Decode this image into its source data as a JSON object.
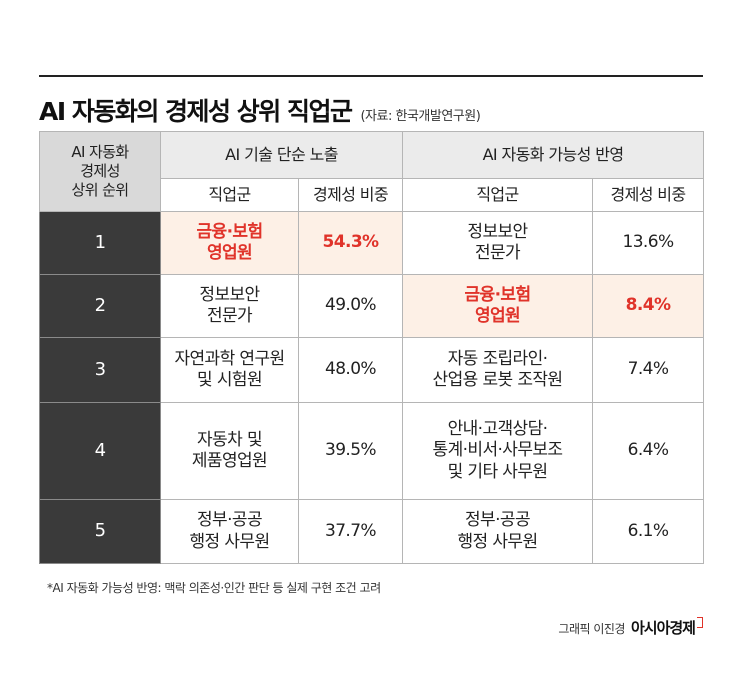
{
  "title": "AI 자동화의 경제성 상위 직업군",
  "source": "(자료: 한국개발연구원)",
  "table": {
    "rank_header": [
      "AI 자동화",
      "경제성",
      "상위 순위"
    ],
    "group_a": "AI 기술 단순 노출",
    "group_b": "AI 자동화 가능성 반영",
    "col_occupation": "직업군",
    "col_share": "경제성 비중",
    "rows": [
      {
        "rank": "1",
        "a_job": [
          "금융·보험",
          "영업원"
        ],
        "a_share": "54.3%",
        "a_highlight": true,
        "b_job": [
          "정보보안",
          "전문가"
        ],
        "b_share": "13.6%",
        "b_highlight": false
      },
      {
        "rank": "2",
        "a_job": [
          "정보보안",
          "전문가"
        ],
        "a_share": "49.0%",
        "a_highlight": false,
        "b_job": [
          "금융·보험",
          "영업원"
        ],
        "b_share": "8.4%",
        "b_highlight": true
      },
      {
        "rank": "3",
        "a_job": [
          "자연과학 연구원",
          "및 시험원"
        ],
        "a_share": "48.0%",
        "a_highlight": false,
        "b_job": [
          "자동 조립라인·",
          "산업용 로봇 조작원"
        ],
        "b_share": "7.4%",
        "b_highlight": false
      },
      {
        "rank": "4",
        "a_job": [
          "자동차 및",
          "제품영업원"
        ],
        "a_share": "39.5%",
        "a_highlight": false,
        "b_job": [
          "안내·고객상담·",
          "통계·비서·사무보조",
          "및 기타 사무원"
        ],
        "b_share": "6.4%",
        "b_highlight": false
      },
      {
        "rank": "5",
        "a_job": [
          "정부·공공",
          "행정 사무원"
        ],
        "a_share": "37.7%",
        "a_highlight": false,
        "b_job": [
          "정부·공공",
          "행정 사무원"
        ],
        "b_share": "6.1%",
        "b_highlight": false
      }
    ]
  },
  "footnote": "*AI 자동화 가능성 반영: 맥락 의존성·인간 판단 등 실제 구현 조건 고려",
  "credit": "그래픽 이진경",
  "brand": "아시아경제",
  "colors": {
    "highlight_text": "#e0332a",
    "highlight_bg": "#fdf0e6",
    "rank_bg": "#3a3a3a"
  }
}
